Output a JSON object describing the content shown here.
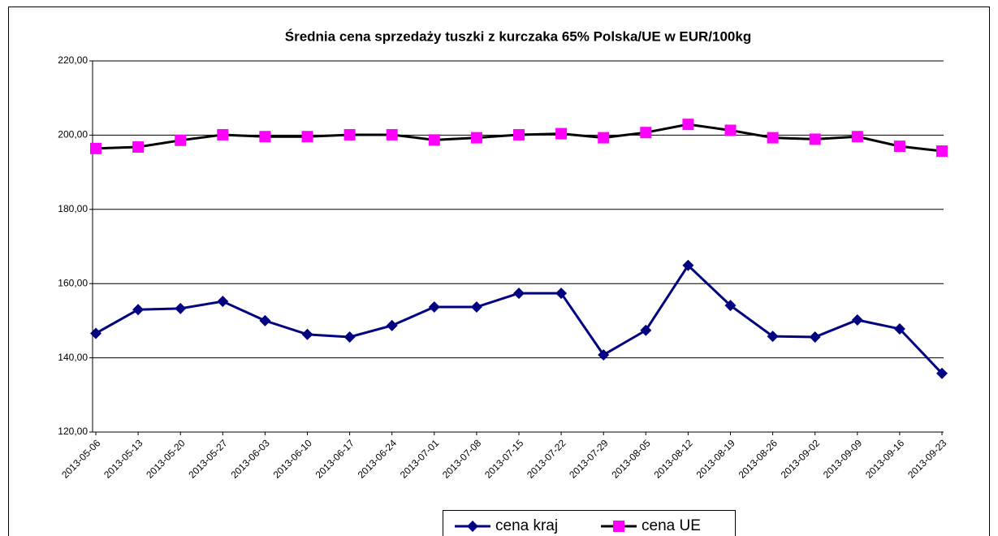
{
  "chart_data": {
    "type": "line",
    "title": "Średnia cena sprzedaży tuszki z kurczaka 65% Polska/UE w EUR/100kg",
    "categories": [
      "2013-05-06",
      "2013-05-13",
      "2013-05-20",
      "2013-05-27",
      "2013-06-03",
      "2013-06-10",
      "2013-06-17",
      "2013-06-24",
      "2013-07-01",
      "2013-07-08",
      "2013-07-15",
      "2013-07-22",
      "2013-07-29",
      "2013-08-05",
      "2013-08-12",
      "2013-08-19",
      "2013-08-26",
      "2013-09-02",
      "2013-09-09",
      "2013-09-16",
      "2013-09-23"
    ],
    "series": [
      {
        "name": "cena kraj",
        "color": "#000080",
        "marker": "diamond",
        "values": [
          146.6,
          153.0,
          153.3,
          155.2,
          150.0,
          146.3,
          145.6,
          148.7,
          153.7,
          153.7,
          157.4,
          157.4,
          140.8,
          147.4,
          164.9,
          154.1,
          145.8,
          145.6,
          150.2,
          147.8,
          135.8
        ]
      },
      {
        "name": "cena UE",
        "color": "#000000",
        "marker_color": "#ff00ff",
        "marker": "square",
        "values": [
          196.4,
          196.8,
          198.6,
          200.1,
          199.6,
          199.6,
          200.1,
          200.1,
          198.7,
          199.3,
          200.1,
          200.4,
          199.3,
          200.7,
          202.9,
          201.3,
          199.3,
          198.9,
          199.6,
          197.0,
          195.7
        ]
      }
    ],
    "ylim": [
      120,
      220
    ],
    "yticks": [
      {
        "value": 120,
        "label": "120,00"
      },
      {
        "value": 140,
        "label": "140,00"
      },
      {
        "value": 160,
        "label": "160,00"
      },
      {
        "value": 180,
        "label": "180,00"
      },
      {
        "value": 200,
        "label": "200,00"
      },
      {
        "value": 220,
        "label": "220,00"
      }
    ],
    "grid": true,
    "legend": "bottom"
  }
}
